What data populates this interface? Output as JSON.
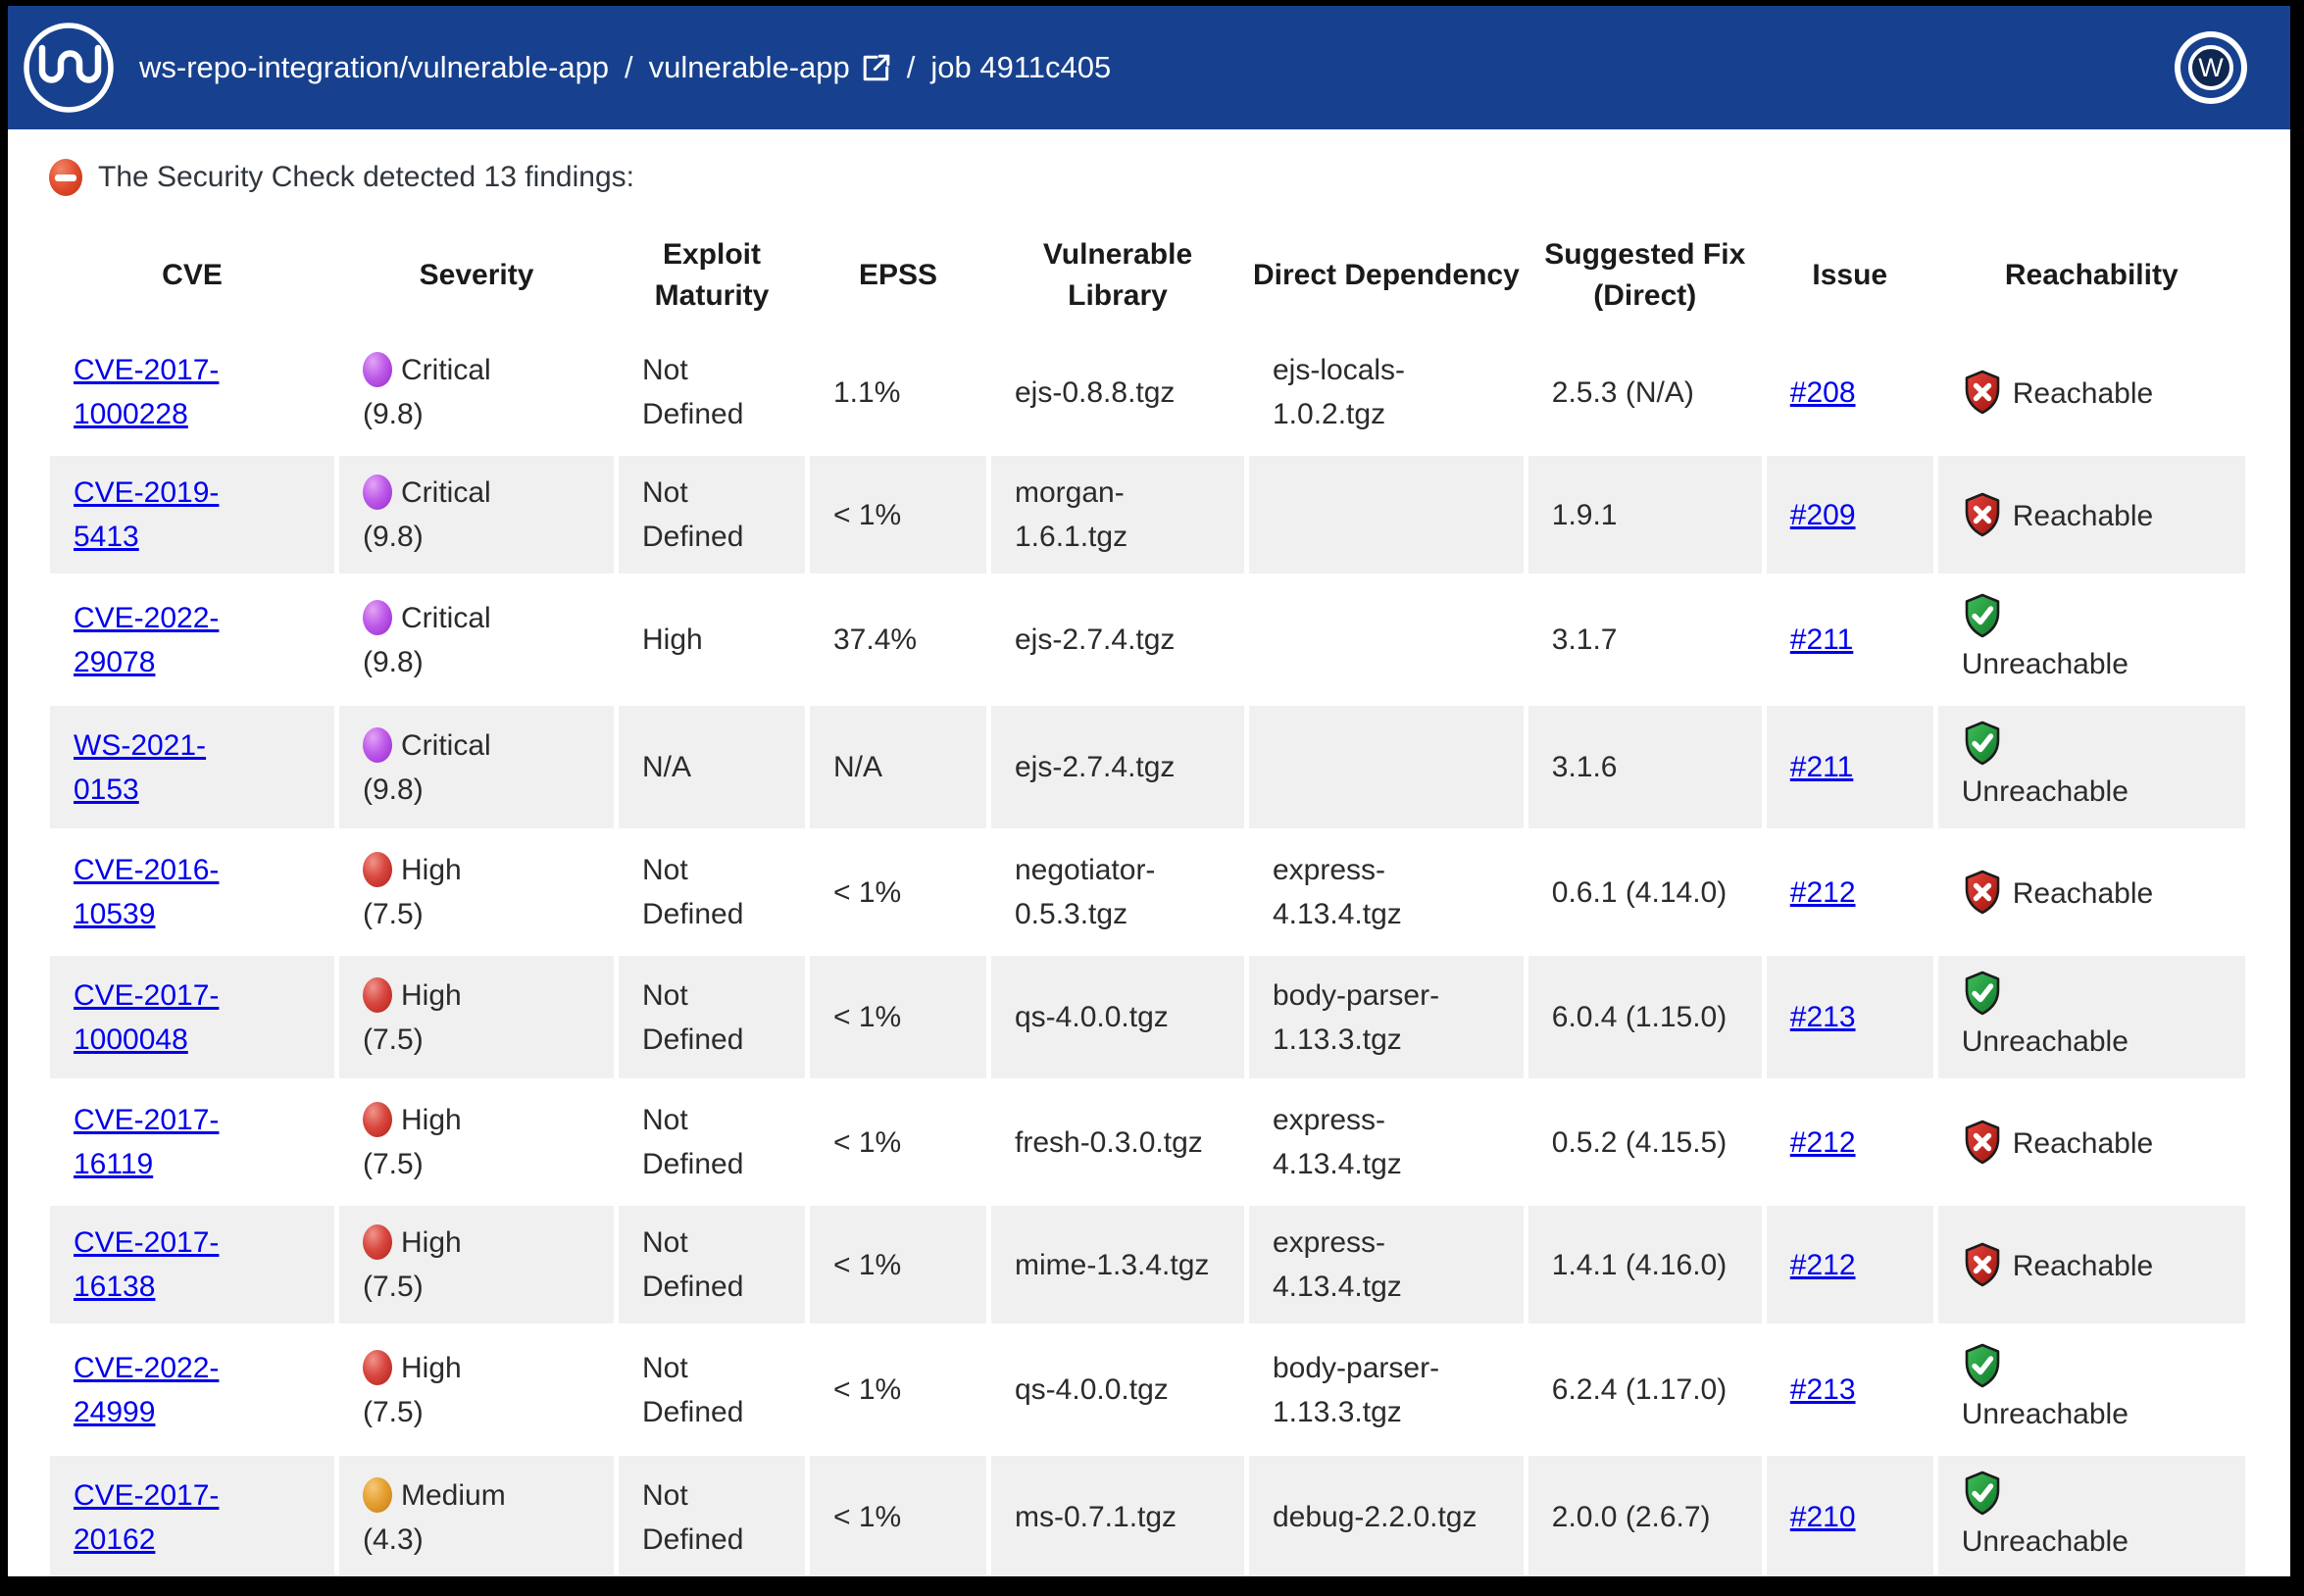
{
  "header": {
    "logo": "mend-wave-logo",
    "breadcrumb": {
      "repo_path": "ws-repo-integration/vulnerable-app",
      "separator1": "/",
      "app_link": "vulnerable-app",
      "external_link_icon": "external-link",
      "separator2": "/",
      "job_label": "job 4911c405"
    },
    "avatar_letter": "W",
    "background_color": "#17418F",
    "avatar_center_color": "#0D2750"
  },
  "findings_banner": {
    "icon": "no-entry",
    "message": "The Security Check detected 13 findings:"
  },
  "table": {
    "columns": [
      "CVE",
      "Severity",
      "Exploit Maturity",
      "EPSS",
      "Vulnerable Library",
      "Direct Dependency",
      "Suggested Fix (Direct)",
      "Issue",
      "Reachability"
    ],
    "rows": [
      {
        "cve": "CVE-2017-1000228",
        "severity": "Critical",
        "score": "(9.8)",
        "severity_level": "critical",
        "exploit_maturity": "Not Defined",
        "epss": "1.1%",
        "vulnerable_library": "ejs-0.8.8.tgz",
        "direct_dependency": "ejs-locals-1.0.2.tgz",
        "suggested_fix": "2.5.3 (N/A)",
        "issue": "#208",
        "reachability": "Reachable"
      },
      {
        "cve": "CVE-2019-5413",
        "severity": "Critical",
        "score": "(9.8)",
        "severity_level": "critical",
        "exploit_maturity": "Not Defined",
        "epss": "< 1%",
        "vulnerable_library": "morgan-1.6.1.tgz",
        "direct_dependency": "",
        "suggested_fix": "1.9.1",
        "issue": "#209",
        "reachability": "Reachable"
      },
      {
        "cve": "CVE-2022-29078",
        "severity": "Critical",
        "score": "(9.8)",
        "severity_level": "critical",
        "exploit_maturity": "High",
        "epss": "37.4%",
        "vulnerable_library": "ejs-2.7.4.tgz",
        "direct_dependency": "",
        "suggested_fix": "3.1.7",
        "issue": "#211",
        "reachability": "Unreachable"
      },
      {
        "cve": "WS-2021-0153",
        "severity": "Critical",
        "score": "(9.8)",
        "severity_level": "critical",
        "exploit_maturity": "N/A",
        "epss": "N/A",
        "vulnerable_library": "ejs-2.7.4.tgz",
        "direct_dependency": "",
        "suggested_fix": "3.1.6",
        "issue": "#211",
        "reachability": "Unreachable"
      },
      {
        "cve": "CVE-2016-10539",
        "severity": "High",
        "score": "(7.5)",
        "severity_level": "high",
        "exploit_maturity": "Not Defined",
        "epss": "< 1%",
        "vulnerable_library": "negotiator-0.5.3.tgz",
        "direct_dependency": "express-4.13.4.tgz",
        "suggested_fix": "0.6.1 (4.14.0)",
        "issue": "#212",
        "reachability": "Reachable"
      },
      {
        "cve": "CVE-2017-1000048",
        "severity": "High",
        "score": "(7.5)",
        "severity_level": "high",
        "exploit_maturity": "Not Defined",
        "epss": "< 1%",
        "vulnerable_library": "qs-4.0.0.tgz",
        "direct_dependency": "body-parser-1.13.3.tgz",
        "suggested_fix": "6.0.4 (1.15.0)",
        "issue": "#213",
        "reachability": "Unreachable"
      },
      {
        "cve": "CVE-2017-16119",
        "severity": "High",
        "score": "(7.5)",
        "severity_level": "high",
        "exploit_maturity": "Not Defined",
        "epss": "< 1%",
        "vulnerable_library": "fresh-0.3.0.tgz",
        "direct_dependency": "express-4.13.4.tgz",
        "suggested_fix": "0.5.2 (4.15.5)",
        "issue": "#212",
        "reachability": "Reachable"
      },
      {
        "cve": "CVE-2017-16138",
        "severity": "High",
        "score": "(7.5)",
        "severity_level": "high",
        "exploit_maturity": "Not Defined",
        "epss": "< 1%",
        "vulnerable_library": "mime-1.3.4.tgz",
        "direct_dependency": "express-4.13.4.tgz",
        "suggested_fix": "1.4.1 (4.16.0)",
        "issue": "#212",
        "reachability": "Reachable"
      },
      {
        "cve": "CVE-2022-24999",
        "severity": "High",
        "score": "(7.5)",
        "severity_level": "high",
        "exploit_maturity": "Not Defined",
        "epss": "< 1%",
        "vulnerable_library": "qs-4.0.0.tgz",
        "direct_dependency": "body-parser-1.13.3.tgz",
        "suggested_fix": "6.2.4 (1.17.0)",
        "issue": "#213",
        "reachability": "Unreachable"
      },
      {
        "cve": "CVE-2017-20162",
        "severity": "Medium",
        "score": "(4.3)",
        "severity_level": "medium",
        "exploit_maturity": "Not Defined",
        "epss": "< 1%",
        "vulnerable_library": "ms-0.7.1.tgz",
        "direct_dependency": "debug-2.2.0.tgz",
        "suggested_fix": "2.0.0 (2.6.7)",
        "issue": "#210",
        "reachability": "Unreachable"
      }
    ]
  },
  "colors": {
    "link": "#0000EE",
    "row_stripe": "#F0F0F0",
    "text": "#2B2B2B",
    "severity_critical": "#A93EE0",
    "severity_high": "#D03A31",
    "severity_medium": "#E09A28",
    "shield_reachable": "#C21D17",
    "shield_unreachable": "#1F9D3C"
  }
}
